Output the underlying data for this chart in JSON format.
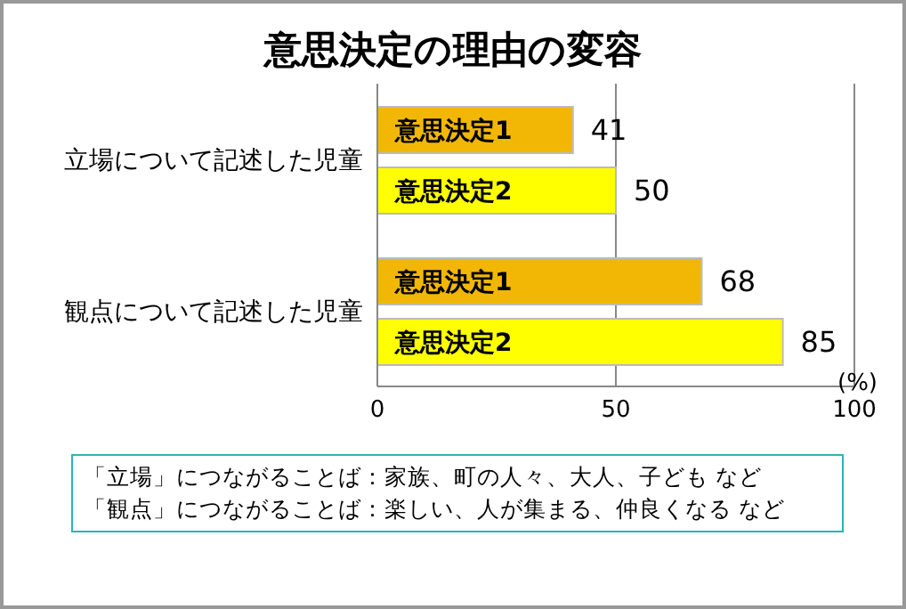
{
  "chart_data": {
    "type": "bar",
    "orientation": "horizontal",
    "title": "意思決定の理由の変容",
    "xlabel": "(%)",
    "categories": [
      "立場について記述した児童",
      "観点について記述した児童"
    ],
    "series": [
      {
        "name": "意思決定1",
        "color": "#f2b705",
        "values": [
          41,
          68
        ]
      },
      {
        "name": "意思決定2",
        "color": "#ffff00",
        "values": [
          50,
          85
        ]
      }
    ],
    "xlim": [
      0,
      100
    ],
    "xticks": [
      0,
      50,
      100
    ],
    "grid": "x",
    "legend": false,
    "data_labels": true,
    "annotations": [
      "「立場」につながることば：家族、町の人々、大人、子ども など",
      "「観点」につながることば：楽しい、人が集まる、仲良くなる など"
    ]
  }
}
